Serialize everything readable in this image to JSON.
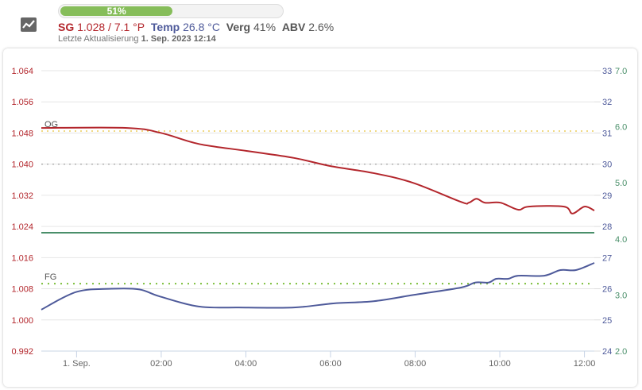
{
  "header": {
    "icon": "chart-line-icon",
    "progress": {
      "value_percent": 51,
      "label": "51%"
    },
    "sg_label": "SG",
    "sg_value": "1.028 / 7.1 °P",
    "temp_label": "Temp",
    "temp_value": "26.8 °C",
    "verg_label": "Verg",
    "verg_value": "41%",
    "abv_label": "ABV",
    "abv_value": "2.6%",
    "update_label": "Letzte Aktualisierung",
    "update_value": "1. Sep. 2023 12:14"
  },
  "colors": {
    "sg": "#b3262c",
    "temp": "#4e5a9a",
    "third": "#4a8f6a",
    "og": "#e8c23a",
    "fg": "#7cbf3a",
    "progress": "#86bd5a"
  },
  "chart_data": {
    "type": "line",
    "x_range": [
      "2023-08-31T23:10",
      "2023-09-01T12:14"
    ],
    "x_ticks": [
      {
        "t": "2023-09-01T00:00",
        "label": "1. Sep."
      },
      {
        "t": "2023-09-01T02:00",
        "label": "02:00"
      },
      {
        "t": "2023-09-01T04:00",
        "label": "04:00"
      },
      {
        "t": "2023-09-01T06:00",
        "label": "06:00"
      },
      {
        "t": "2023-09-01T08:00",
        "label": "08:00"
      },
      {
        "t": "2023-09-01T10:00",
        "label": "10:00"
      },
      {
        "t": "2023-09-01T12:00",
        "label": "12:00"
      }
    ],
    "y_left": {
      "range": [
        0.992,
        1.064
      ],
      "ticks": [
        "0.992",
        "1.000",
        "1.008",
        "1.016",
        "1.024",
        "1.032",
        "1.040",
        "1.048",
        "1.056",
        "1.064"
      ]
    },
    "y_right": {
      "range": [
        24,
        33
      ],
      "ticks": [
        "24",
        "25",
        "26",
        "27",
        "28",
        "29",
        "30",
        "31",
        "32",
        "33"
      ]
    },
    "y_right2": {
      "range": [
        2.0,
        7.0
      ],
      "ticks": [
        "2.0",
        "3.0",
        "4.0",
        "5.0",
        "6.0",
        "7.0"
      ]
    },
    "grid": true,
    "series": [
      {
        "axis": "left",
        "color": "#b3262c",
        "points": [
          [
            "2023-08-31T23:10",
            1.0493
          ],
          [
            "2023-09-01T01:12",
            1.0493
          ],
          [
            "2023-09-01T02:00",
            1.048
          ],
          [
            "2023-09-01T02:53",
            1.0452
          ],
          [
            "2023-09-01T04:01",
            1.0434
          ],
          [
            "2023-09-01T05:08",
            1.0416
          ],
          [
            "2023-09-01T06:00",
            1.0395
          ],
          [
            "2023-09-01T07:01",
            1.0377
          ],
          [
            "2023-09-01T07:57",
            1.0352
          ],
          [
            "2023-09-01T09:05",
            1.0303
          ],
          [
            "2023-09-01T09:16",
            1.0301
          ],
          [
            "2023-09-01T09:27",
            1.0311
          ],
          [
            "2023-09-01T09:39",
            1.0301
          ],
          [
            "2023-09-01T10:01",
            1.0301
          ],
          [
            "2023-09-01T10:26",
            1.0283
          ],
          [
            "2023-09-01T10:41",
            1.0291
          ],
          [
            "2023-09-01T11:31",
            1.0291
          ],
          [
            "2023-09-01T11:43",
            1.0273
          ],
          [
            "2023-09-01T12:00",
            1.0291
          ],
          [
            "2023-09-01T12:14",
            1.0281
          ]
        ]
      },
      {
        "axis": "right",
        "color": "#4e5a9a",
        "points": [
          [
            "2023-08-31T23:10",
            25.33
          ],
          [
            "2023-09-01T00:00",
            25.9
          ],
          [
            "2023-09-01T00:50",
            26.0
          ],
          [
            "2023-09-01T01:29",
            25.98
          ],
          [
            "2023-09-01T01:57",
            25.76
          ],
          [
            "2023-09-01T02:53",
            25.43
          ],
          [
            "2023-09-01T03:50",
            25.4
          ],
          [
            "2023-09-01T05:08",
            25.4
          ],
          [
            "2023-09-01T06:04",
            25.53
          ],
          [
            "2023-09-01T07:01",
            25.6
          ],
          [
            "2023-09-01T07:57",
            25.8
          ],
          [
            "2023-09-01T09:05",
            26.04
          ],
          [
            "2023-09-01T09:25",
            26.2
          ],
          [
            "2023-09-01T09:44",
            26.2
          ],
          [
            "2023-09-01T09:55",
            26.32
          ],
          [
            "2023-09-01T10:12",
            26.32
          ],
          [
            "2023-09-01T10:26",
            26.42
          ],
          [
            "2023-09-01T11:03",
            26.42
          ],
          [
            "2023-09-01T11:26",
            26.6
          ],
          [
            "2023-09-01T11:48",
            26.6
          ],
          [
            "2023-09-01T12:14",
            26.83
          ]
        ]
      }
    ],
    "ref_lines": [
      {
        "label": "OG",
        "axis": "left",
        "value": 1.0485,
        "color": "#e8c23a",
        "style": "dotted"
      },
      {
        "label": "",
        "axis": "left",
        "value": 1.04,
        "color": "#999999",
        "style": "dotted"
      },
      {
        "label": "",
        "axis": "right2",
        "value": 4.11,
        "color": "#4a8f6a",
        "style": "solid"
      },
      {
        "label": "FG",
        "axis": "left",
        "value": 1.0093,
        "color": "#7cbf3a",
        "style": "dotted"
      }
    ]
  }
}
